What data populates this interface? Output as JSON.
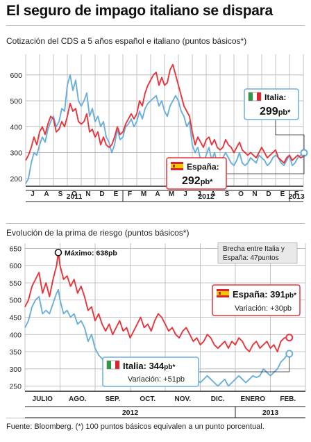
{
  "title": "El seguro de impago italiano se dispara",
  "source": "Fuente: Bloomberg. (*) 100 puntos básicos equivalen a un punto porcentual.",
  "colors": {
    "italia": "#6aaedc",
    "espana": "#e8343b",
    "grid": "#b4b4b4",
    "axis": "#222222"
  },
  "chart_data": [
    {
      "type": "line",
      "title": "Cotización del CDS a 5 años español e italiano (puntos básicos*)",
      "ylim": [
        170,
        680
      ],
      "yticks": [
        200,
        300,
        400,
        500,
        600
      ],
      "month_labels": [
        "J",
        "A",
        "S",
        "O",
        "N",
        "D",
        "E",
        "F",
        "M",
        "A",
        "M",
        "J",
        "J",
        "A",
        "S",
        "O",
        "N",
        "D",
        "E",
        "F"
      ],
      "year_labels": [
        "2011",
        "2012",
        "2013"
      ],
      "x_unit": "month index (0 = early June 2011)",
      "series": [
        {
          "name": "Italia",
          "key": "italia",
          "color": "#6aaedc",
          "x": [
            0,
            0.2,
            0.4,
            0.6,
            0.8,
            1.0,
            1.2,
            1.4,
            1.6,
            1.8,
            2.0,
            2.2,
            2.4,
            2.6,
            2.8,
            3.0,
            3.2,
            3.4,
            3.6,
            3.8,
            4.0,
            4.2,
            4.4,
            4.6,
            4.8,
            5.0,
            5.2,
            5.4,
            5.6,
            5.8,
            6.0,
            6.2,
            6.4,
            6.6,
            6.8,
            7.0,
            7.2,
            7.4,
            7.6,
            7.8,
            8.0,
            8.2,
            8.4,
            8.6,
            8.8,
            9.0,
            9.2,
            9.4,
            9.6,
            9.8,
            10.0,
            10.2,
            10.4,
            10.6,
            10.8,
            11.0,
            11.2,
            11.4,
            11.6,
            11.8,
            12.0,
            12.2,
            12.4,
            12.6,
            12.8,
            13.0,
            13.2,
            13.4,
            13.6,
            13.8,
            14.0,
            14.2,
            14.4,
            14.6,
            14.8,
            15.0,
            15.2,
            15.4,
            15.6,
            15.8,
            16.0,
            16.2,
            16.4,
            16.6,
            16.8,
            17.0,
            17.2,
            17.4,
            17.6,
            17.8,
            18.0,
            18.2,
            18.4,
            18.6,
            18.8,
            19.0,
            19.2,
            19.4,
            19.6,
            19.8,
            20.0,
            20.2
          ],
          "y": [
            180,
            200,
            260,
            300,
            290,
            330,
            360,
            340,
            390,
            420,
            440,
            400,
            420,
            470,
            460,
            560,
            600,
            540,
            580,
            500,
            480,
            500,
            530,
            440,
            470,
            420,
            440,
            400,
            420,
            360,
            340,
            300,
            330,
            390,
            350,
            360,
            400,
            410,
            430,
            400,
            420,
            460,
            430,
            470,
            490,
            500,
            510,
            520,
            480,
            500,
            460,
            440,
            480,
            500,
            520,
            500,
            460,
            440,
            400,
            420,
            330,
            300,
            320,
            270,
            260,
            290,
            320,
            270,
            300,
            260,
            260,
            280,
            300,
            280,
            260,
            250,
            270,
            300,
            260,
            250,
            260,
            280,
            270,
            260,
            290,
            280,
            270,
            250,
            260,
            280,
            290,
            280,
            260,
            250,
            270,
            290,
            250,
            260,
            280,
            290,
            290,
            299
          ]
        },
        {
          "name": "España",
          "key": "espana",
          "color": "#e8343b",
          "x": [
            0,
            0.2,
            0.4,
            0.6,
            0.8,
            1.0,
            1.2,
            1.4,
            1.6,
            1.8,
            2.0,
            2.2,
            2.4,
            2.6,
            2.8,
            3.0,
            3.2,
            3.4,
            3.6,
            3.8,
            4.0,
            4.2,
            4.4,
            4.6,
            4.8,
            5.0,
            5.2,
            5.4,
            5.6,
            5.8,
            6.0,
            6.2,
            6.4,
            6.6,
            6.8,
            7.0,
            7.2,
            7.4,
            7.6,
            7.8,
            8.0,
            8.2,
            8.4,
            8.6,
            8.8,
            9.0,
            9.2,
            9.4,
            9.6,
            9.8,
            10.0,
            10.2,
            10.4,
            10.6,
            10.8,
            11.0,
            11.2,
            11.4,
            11.6,
            11.8,
            12.0,
            12.2,
            12.4,
            12.6,
            12.8,
            13.0,
            13.2,
            13.4,
            13.6,
            13.8,
            14.0,
            14.2,
            14.4,
            14.6,
            14.8,
            15.0,
            15.2,
            15.4,
            15.6,
            15.8,
            16.0,
            16.2,
            16.4,
            16.6,
            16.8,
            17.0,
            17.2,
            17.4,
            17.6,
            17.8,
            18.0,
            18.2,
            18.4,
            18.6,
            18.8,
            19.0,
            19.2,
            19.4,
            19.6,
            19.8,
            20.0,
            20.2
          ],
          "y": [
            270,
            290,
            320,
            360,
            330,
            380,
            400,
            370,
            410,
            440,
            430,
            380,
            390,
            420,
            400,
            440,
            490,
            460,
            470,
            420,
            410,
            420,
            450,
            380,
            390,
            360,
            380,
            330,
            360,
            330,
            320,
            330,
            360,
            400,
            370,
            380,
            410,
            430,
            450,
            430,
            450,
            500,
            480,
            530,
            560,
            580,
            600,
            610,
            560,
            590,
            560,
            570,
            620,
            640,
            600,
            560,
            520,
            480,
            460,
            440,
            380,
            330,
            360,
            340,
            320,
            350,
            360,
            330,
            350,
            320,
            310,
            320,
            350,
            330,
            320,
            300,
            320,
            340,
            310,
            300,
            290,
            300,
            290,
            280,
            300,
            320,
            300,
            280,
            290,
            300,
            310,
            280,
            270,
            260,
            280,
            290,
            270,
            280,
            290,
            280,
            285,
            292
          ]
        }
      ],
      "callouts": [
        {
          "key": "italia",
          "name": "Italia",
          "value": "299",
          "unit": "pb*"
        },
        {
          "key": "espana",
          "name": "España",
          "value": "292",
          "unit": "pb*"
        }
      ]
    },
    {
      "type": "line",
      "title": "Evolución de la prima de riesgo (puntos básicos*)",
      "ylim": [
        235,
        665
      ],
      "yticks": [
        250,
        300,
        350,
        400,
        450,
        500,
        550,
        600,
        650
      ],
      "month_labels": [
        "JULIO",
        "AGO.",
        "SEP.",
        "OCT.",
        "NOV.",
        "DIC.",
        "ENERO",
        "FEB."
      ],
      "year_labels": [
        "2012",
        "2013"
      ],
      "x_unit": "month index (0 = start of July 2012)",
      "annotation_max": "Máximo: 638pb",
      "annotation_max_x": 0.95,
      "annotation_max_y": 638,
      "note_box": "Brecha entre Italia y España: 47puntos",
      "series": [
        {
          "name": "España",
          "key": "espana",
          "color": "#e8343b",
          "x": [
            0,
            0.1,
            0.2,
            0.3,
            0.4,
            0.5,
            0.6,
            0.7,
            0.8,
            0.9,
            0.95,
            1.0,
            1.1,
            1.2,
            1.3,
            1.4,
            1.5,
            1.6,
            1.7,
            1.8,
            1.9,
            2.0,
            2.1,
            2.2,
            2.3,
            2.4,
            2.5,
            2.6,
            2.7,
            2.8,
            2.9,
            3.0,
            3.1,
            3.2,
            3.3,
            3.4,
            3.5,
            3.6,
            3.7,
            3.8,
            3.9,
            4.0,
            4.1,
            4.2,
            4.3,
            4.4,
            4.5,
            4.6,
            4.7,
            4.8,
            4.9,
            5.0,
            5.1,
            5.2,
            5.3,
            5.4,
            5.5,
            5.6,
            5.7,
            5.8,
            5.9,
            6.0,
            6.1,
            6.2,
            6.3,
            6.4,
            6.5,
            6.6,
            6.7,
            6.8,
            6.9,
            7.0,
            7.1,
            7.2,
            7.3,
            7.4,
            7.5
          ],
          "y": [
            480,
            500,
            540,
            560,
            580,
            520,
            550,
            510,
            560,
            600,
            638,
            600,
            560,
            570,
            540,
            560,
            520,
            540,
            510,
            470,
            480,
            440,
            460,
            430,
            410,
            430,
            400,
            420,
            440,
            410,
            420,
            390,
            410,
            430,
            450,
            420,
            430,
            410,
            440,
            460,
            450,
            430,
            410,
            420,
            400,
            390,
            410,
            420,
            400,
            380,
            390,
            370,
            380,
            400,
            390,
            370,
            360,
            370,
            380,
            360,
            380,
            370,
            390,
            380,
            360,
            350,
            370,
            380,
            360,
            370,
            380,
            360,
            370,
            350,
            380,
            390,
            391
          ]
        },
        {
          "name": "Italia",
          "key": "italia",
          "color": "#6aaedc",
          "x": [
            0,
            0.1,
            0.2,
            0.3,
            0.4,
            0.5,
            0.6,
            0.7,
            0.8,
            0.9,
            0.95,
            1.0,
            1.1,
            1.2,
            1.3,
            1.4,
            1.5,
            1.6,
            1.7,
            1.8,
            1.9,
            2.0,
            2.1,
            2.2,
            2.3,
            2.4,
            2.5,
            2.6,
            2.7,
            2.8,
            2.9,
            3.0,
            3.1,
            3.2,
            3.3,
            3.4,
            3.5,
            3.6,
            3.7,
            3.8,
            3.9,
            4.0,
            4.1,
            4.2,
            4.3,
            4.4,
            4.5,
            4.6,
            4.7,
            4.8,
            4.9,
            5.0,
            5.1,
            5.2,
            5.3,
            5.4,
            5.5,
            5.6,
            5.7,
            5.8,
            5.9,
            6.0,
            6.1,
            6.2,
            6.3,
            6.4,
            6.5,
            6.6,
            6.7,
            6.8,
            6.9,
            7.0,
            7.1,
            7.2,
            7.3,
            7.4,
            7.5
          ],
          "y": [
            420,
            440,
            480,
            500,
            510,
            460,
            470,
            460,
            490,
            520,
            530,
            500,
            460,
            470,
            450,
            460,
            430,
            440,
            420,
            380,
            400,
            360,
            340,
            330,
            310,
            320,
            300,
            320,
            330,
            310,
            300,
            290,
            300,
            320,
            330,
            310,
            320,
            300,
            310,
            330,
            320,
            300,
            290,
            300,
            280,
            270,
            280,
            290,
            270,
            260,
            270,
            260,
            270,
            280,
            270,
            260,
            250,
            260,
            270,
            250,
            260,
            270,
            280,
            270,
            260,
            270,
            280,
            275,
            280,
            300,
            290,
            280,
            290,
            300,
            320,
            330,
            344
          ]
        }
      ],
      "callouts": [
        {
          "key": "espana",
          "name": "España",
          "value": "391",
          "unit": "pb*",
          "variation": "Variación: +30pb"
        },
        {
          "key": "italia",
          "name": "Italia",
          "value": "344",
          "unit": "pb*",
          "variation": "Variación: +51pb"
        }
      ]
    }
  ]
}
